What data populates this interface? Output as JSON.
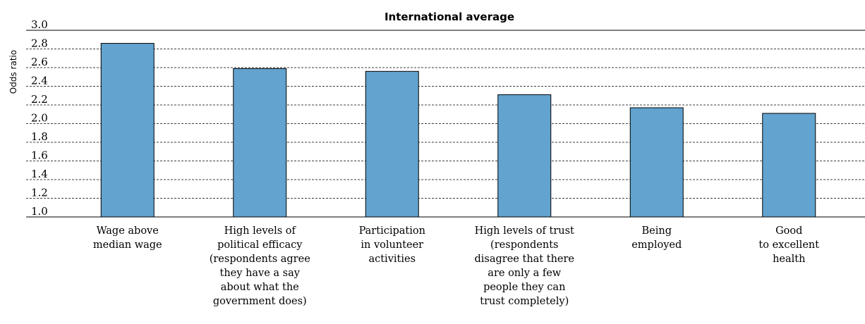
{
  "chart_data": {
    "type": "bar",
    "title": "International average",
    "ylabel": "Odds ratio",
    "xlabel": "",
    "ylim": [
      1.0,
      3.0
    ],
    "yticks": [
      "1.0",
      "1.2",
      "1.4",
      "1.6",
      "1.8",
      "2.0",
      "2.2",
      "2.4",
      "2.6",
      "2.8",
      "3.0"
    ],
    "grid": true,
    "categories": [
      [
        "Wage above",
        "median wage"
      ],
      [
        "High levels of",
        "political efficacy",
        "(respondents agree",
        "they have a say",
        "about what the",
        "government does)"
      ],
      [
        "Participation",
        "in volunteer",
        "activities"
      ],
      [
        "High levels of trust",
        "(respondents",
        "disagree that there",
        "are only a few",
        "people they can",
        "trust completely)"
      ],
      [
        "Being",
        "employed"
      ],
      [
        "Good",
        "to excellent",
        "health"
      ]
    ],
    "values": [
      2.86,
      2.59,
      2.56,
      2.31,
      2.17,
      2.11
    ],
    "bar_color": "#62a3cf"
  }
}
